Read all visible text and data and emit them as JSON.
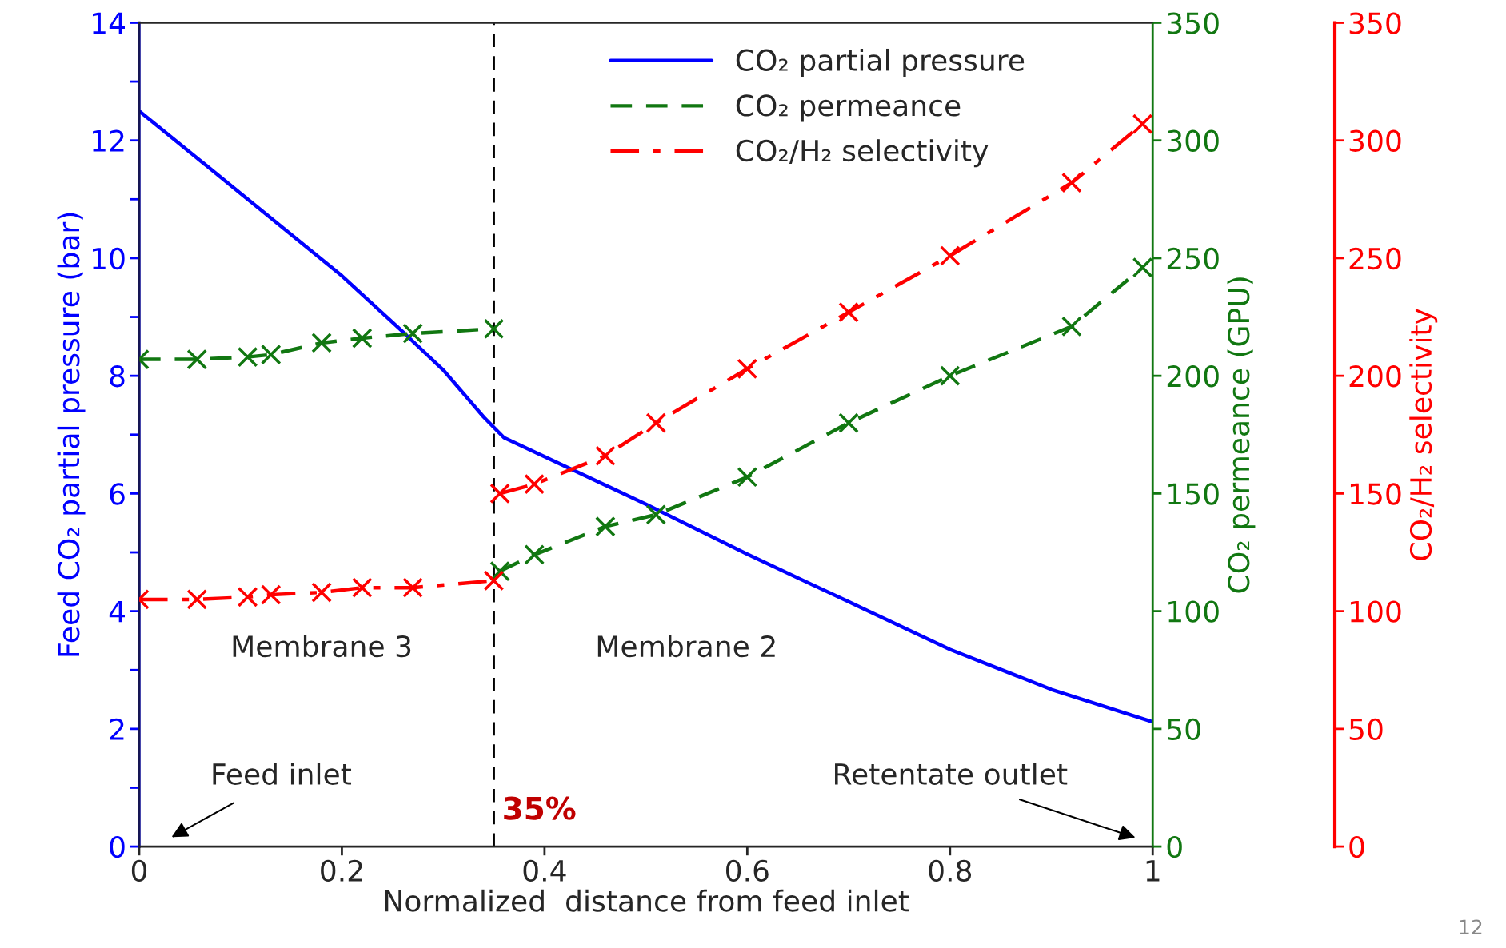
{
  "chart_data": {
    "type": "line",
    "xlabel": "Normalized  distance from feed inlet",
    "ylabel": "Feed CO₂ partial pressure (bar)",
    "y2label": "CO₂ permeance (GPU)",
    "y3label": "CO₂/H₂ selectivity",
    "xlim": [
      0,
      1
    ],
    "xticks": [
      0,
      0.2,
      0.4,
      0.6,
      0.8,
      1
    ],
    "ylim": [
      0,
      14
    ],
    "yticks": [
      0,
      {
        "value": 1,
        "label": null
      },
      2,
      {
        "value": 3,
        "label": null
      },
      4,
      {
        "value": 5,
        "label": null
      },
      6,
      {
        "value": 7,
        "label": null
      },
      8,
      {
        "value": 9,
        "label": null
      },
      10,
      {
        "value": 11,
        "label": null
      },
      12,
      {
        "value": 13,
        "label": null
      },
      14
    ],
    "y2lim": [
      0,
      350
    ],
    "y2ticks": [
      0,
      50,
      100,
      150,
      200,
      250,
      300,
      350
    ],
    "y3lim": [
      0,
      350
    ],
    "y3ticks": [
      0,
      50,
      100,
      150,
      200,
      250,
      300,
      350
    ],
    "legend": "top right",
    "grid": false,
    "series": [
      {
        "name": "CO₂ partial pressure",
        "color": "#0000ff",
        "axis": "y",
        "line_style": "solid",
        "marker": "none",
        "x": [
          0,
          0.1,
          0.2,
          0.26,
          0.3,
          0.34,
          0.36,
          0.5,
          0.6,
          0.7,
          0.8,
          0.9,
          1
        ],
        "values": [
          12.5,
          11.1,
          9.7,
          8.75,
          8.1,
          7.3,
          6.95,
          5.82,
          4.97,
          4.16,
          3.35,
          2.67,
          2.12
        ]
      },
      {
        "name": "CO₂ permeance",
        "color": "#117711",
        "axis": "y2",
        "line_style": "dashed",
        "marker": "cross",
        "x": [
          0,
          0.057,
          0.107,
          0.13,
          0.18,
          0.22,
          0.27,
          0.35,
          null,
          0.356,
          0.39,
          0.46,
          0.51,
          0.6,
          0.7,
          0.8,
          0.92,
          0.99
        ],
        "values": [
          207,
          207,
          208,
          209,
          214,
          216,
          218,
          220,
          null,
          117,
          124,
          136,
          141,
          157,
          180,
          200,
          221,
          246
        ]
      },
      {
        "name": "CO₂/H₂ selectivity",
        "color": "#ff0000",
        "axis": "y3",
        "line_style": "dashdot",
        "marker": "cross",
        "x": [
          0,
          0.057,
          0.107,
          0.13,
          0.18,
          0.22,
          0.27,
          0.35,
          null,
          0.356,
          0.39,
          0.46,
          0.51,
          0.6,
          0.7,
          0.8,
          0.92,
          0.99
        ],
        "values": [
          105,
          105,
          106,
          107,
          108,
          110,
          110,
          113,
          null,
          150,
          154,
          166,
          180,
          203,
          227,
          251,
          282,
          307
        ]
      }
    ],
    "ref_lines": [
      {
        "axis": "x",
        "value": 0.35,
        "label": "35%",
        "color": "#000000",
        "line_style": "dashed"
      }
    ],
    "annotations": [
      "Membrane 3",
      "Membrane 2",
      "Feed inlet",
      "Retentate outlet",
      "12"
    ]
  }
}
